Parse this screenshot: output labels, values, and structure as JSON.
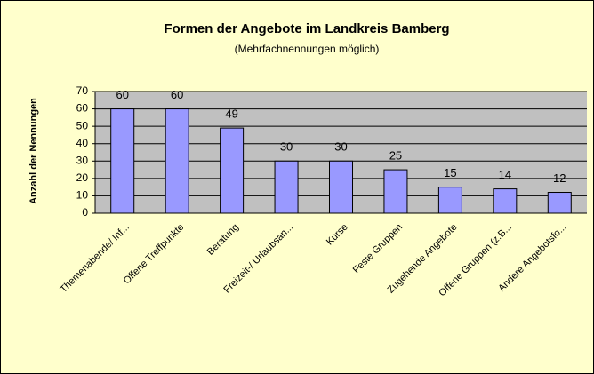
{
  "chart_data": {
    "type": "bar",
    "title": "Formen der Angebote im Landkreis Bamberg",
    "subtitle": "(Mehrfachnennungen möglich)",
    "y_label": "Anzahl der Nennungen",
    "categories": [
      "Themenabende/ Inf...",
      "Offene Treffpunkte",
      "Beratung",
      "Freizeit-/ Urlaubsan...",
      "Kurse",
      "Feste Gruppen",
      "Zugehende Angebote",
      "Offene Gruppen (z.B...",
      "Andere Angebotsfo..."
    ],
    "values": [
      60,
      60,
      49,
      30,
      30,
      25,
      15,
      14,
      12
    ],
    "color": "#9999ff",
    "ylim": [
      0,
      70
    ],
    "yticks": [
      0,
      10,
      20,
      30,
      40,
      50,
      60,
      70
    ],
    "grid": true
  }
}
